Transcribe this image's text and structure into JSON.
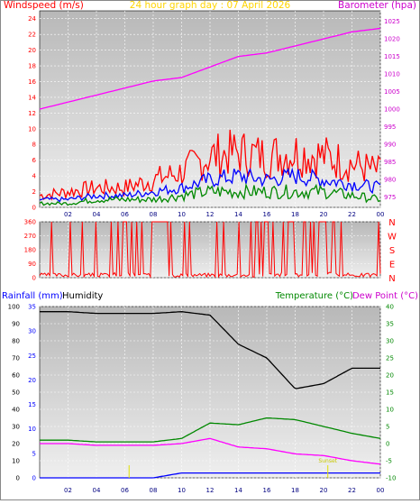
{
  "chart_data": [
    {
      "type": "line",
      "title": "24 hour graph day : 07 April 2026",
      "left_label": "Windspeed (m/s)",
      "right_label": "Barometer (hpa)",
      "x_ticks": [
        "02",
        "04",
        "06",
        "08",
        "10",
        "12",
        "14",
        "16",
        "18",
        "20",
        "22",
        "00"
      ],
      "y_left_ticks": [
        "24",
        "22",
        "20",
        "18",
        "16",
        "14",
        "12",
        "10",
        "8",
        "6",
        "4",
        "2",
        "0"
      ],
      "y_right_ticks": [
        "1025",
        "1020",
        "1015",
        "1010",
        "1005",
        "1000",
        "995",
        "990",
        "985",
        "980",
        "975"
      ],
      "ylim_left": [
        0,
        25
      ],
      "ylim_right": [
        972,
        1028
      ],
      "grid": true,
      "series": [
        {
          "color": "#ff00ff",
          "axis": "right",
          "x": [
            0,
            2,
            4,
            6,
            8,
            10,
            12,
            14,
            16,
            18,
            20,
            22,
            24
          ],
          "values": [
            1000,
            1002,
            1004,
            1006,
            1008,
            1009,
            1012,
            1015,
            1016,
            1018,
            1020,
            1022,
            1023
          ]
        },
        {
          "color": "#ff0000",
          "axis": "left",
          "x": [
            0,
            2,
            4,
            6,
            8,
            10,
            12,
            14,
            16,
            18,
            20,
            22,
            24
          ],
          "values": [
            1.5,
            2,
            2.5,
            2.5,
            3.5,
            4.5,
            6.5,
            7,
            6.5,
            7,
            6.5,
            5.5,
            4.5
          ]
        },
        {
          "color": "#0000ff",
          "axis": "left",
          "x": [
            0,
            2,
            4,
            6,
            8,
            10,
            12,
            14,
            16,
            18,
            20,
            22,
            24
          ],
          "values": [
            1,
            1,
            1.5,
            1.5,
            2,
            2.5,
            3.5,
            4,
            3.5,
            4,
            3.5,
            3,
            2.5
          ]
        },
        {
          "color": "#008800",
          "axis": "left",
          "x": [
            0,
            2,
            4,
            6,
            8,
            10,
            12,
            14,
            16,
            18,
            20,
            22,
            24
          ],
          "values": [
            0.5,
            0.5,
            1,
            1,
            1,
            1.5,
            2,
            2,
            2,
            2,
            2,
            1.5,
            1
          ]
        }
      ]
    },
    {
      "type": "line",
      "right_labels": [
        "N",
        "W",
        "S",
        "E",
        "N"
      ],
      "x_ticks": [],
      "y_left_ticks": [
        "360",
        "270",
        "180",
        "90",
        "0"
      ],
      "ylim": [
        0,
        360
      ],
      "series": [
        {
          "color": "#ff0000",
          "x": [
            0,
            2,
            4,
            6,
            8,
            10,
            12,
            14,
            16,
            18,
            20,
            22,
            24
          ],
          "values": [
            20,
            10,
            15,
            360,
            360,
            10,
            10,
            5,
            360,
            360,
            360,
            30,
            20
          ]
        }
      ]
    },
    {
      "type": "line",
      "left_labels": [
        "Rainfall (mm)",
        "Humidity"
      ],
      "right_labels": [
        "Temperature (°C)",
        "Dew Point (°C)"
      ],
      "x_ticks": [
        "02",
        "04",
        "06",
        "08",
        "10",
        "12",
        "14",
        "16",
        "18",
        "20",
        "22",
        "00"
      ],
      "y_humidity_ticks": [
        "100",
        "90",
        "80",
        "70",
        "60",
        "50",
        "40",
        "30",
        "20",
        "10",
        "0"
      ],
      "y_rain_ticks": [
        "35",
        "30",
        "25",
        "20",
        "15",
        "10",
        "5",
        "0"
      ],
      "y_temp_ticks": [
        "40",
        "35",
        "30",
        "25",
        "20",
        "15",
        "10",
        "5",
        "0",
        "-5",
        "-10"
      ],
      "ylim_humidity": [
        0,
        100
      ],
      "ylim_rain": [
        0,
        35
      ],
      "ylim_temp": [
        -10,
        40
      ],
      "grid": true,
      "annotations": [
        "Sunset",
        "Sunrise"
      ],
      "series": [
        {
          "color": "#000000",
          "axis": "humidity",
          "x": [
            0,
            2,
            4,
            6,
            8,
            10,
            12,
            14,
            16,
            18,
            20,
            22,
            24
          ],
          "values": [
            97,
            97,
            96,
            96,
            96,
            97,
            95,
            78,
            70,
            52,
            55,
            64,
            64
          ]
        },
        {
          "color": "#008800",
          "axis": "temp",
          "x": [
            0,
            2,
            4,
            6,
            8,
            10,
            12,
            14,
            16,
            18,
            20,
            22,
            24
          ],
          "values": [
            1,
            1,
            0.5,
            0.5,
            0.5,
            1.5,
            6,
            5.5,
            7.5,
            7,
            5,
            3,
            1.5
          ]
        },
        {
          "color": "#ff00ff",
          "axis": "temp",
          "x": [
            0,
            2,
            4,
            6,
            8,
            10,
            12,
            14,
            16,
            18,
            20,
            22,
            24
          ],
          "values": [
            0,
            0,
            -0.5,
            -0.5,
            -0.5,
            0,
            1.5,
            -1,
            -1.5,
            -3,
            -3.5,
            -5,
            -6
          ]
        },
        {
          "color": "#0000ff",
          "axis": "rain",
          "x": [
            0,
            2,
            4,
            6,
            8,
            10,
            12,
            14,
            16,
            18,
            20,
            22,
            24
          ],
          "values": [
            0,
            0,
            0,
            0,
            0,
            1,
            1,
            1,
            1,
            1,
            1,
            1,
            1
          ]
        }
      ]
    }
  ]
}
